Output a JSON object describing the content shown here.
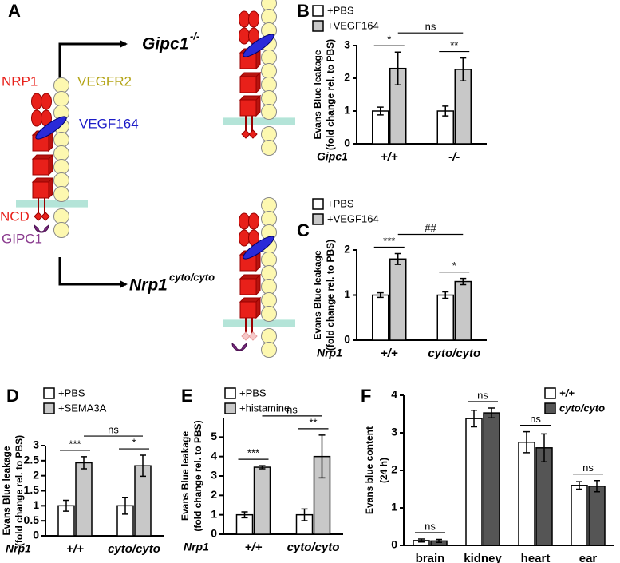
{
  "panel_a": {
    "panel_label": "A",
    "gipc1_label": "Gipc1",
    "gipc1_sup": "-/-",
    "nrp1_label": "Nrp1",
    "nrp1_sup": "cyto/cyto",
    "nrp1": "NRP1",
    "vegfr2": "VEGFR2",
    "vegf164": "VEGF164",
    "ncd": "NCD",
    "gipc1": "GIPC1"
  },
  "chart_data": [
    {
      "type": "bar",
      "panel_label": "B",
      "ylabel": [
        "Evans Blue leakage",
        "(fold change  rel. to PBS)"
      ],
      "xlabel": "Gipc1",
      "categories": [
        "+/+",
        "-/-"
      ],
      "series": [
        {
          "name": "+PBS",
          "color": "#ffffff",
          "values": [
            1,
            1
          ],
          "errors": [
            0.12,
            0.15
          ]
        },
        {
          "name": "+VEGF164",
          "color": "#c8c8c8",
          "values": [
            2.3,
            2.27
          ],
          "errors": [
            0.5,
            0.35
          ]
        }
      ],
      "ylim": [
        0,
        3
      ],
      "yticks": [
        0,
        1,
        2,
        3
      ],
      "annotations": [
        "*",
        "ns",
        "**"
      ]
    },
    {
      "type": "bar",
      "panel_label": "C",
      "ylabel": [
        "Evans Blue leakage",
        "(fold change  rel. to PBS)"
      ],
      "xlabel": "Nrp1",
      "categories": [
        "+/+",
        "cyto/cyto"
      ],
      "series": [
        {
          "name": "+PBS",
          "color": "#ffffff",
          "values": [
            1,
            1
          ],
          "errors": [
            0.05,
            0.07
          ]
        },
        {
          "name": "+VEGF164",
          "color": "#c8c8c8",
          "values": [
            1.8,
            1.3
          ],
          "errors": [
            0.12,
            0.07
          ]
        }
      ],
      "ylim": [
        0,
        2
      ],
      "yticks": [
        0,
        1,
        2
      ],
      "annotations": [
        "***",
        "##",
        "*"
      ]
    },
    {
      "type": "bar",
      "panel_label": "D",
      "ylabel": [
        "Evans Blue leakage",
        "(fold change  rel. to PBS)"
      ],
      "xlabel": "Nrp1",
      "categories": [
        "+/+",
        "cyto/cyto"
      ],
      "series": [
        {
          "name": "+PBS",
          "color": "#ffffff",
          "values": [
            1,
            1
          ],
          "errors": [
            0.18,
            0.28
          ]
        },
        {
          "name": "+SEMA3A",
          "color": "#c8c8c8",
          "values": [
            2.43,
            2.33
          ],
          "errors": [
            0.2,
            0.35
          ]
        }
      ],
      "ylim": [
        0,
        3
      ],
      "yticks": [
        0,
        0.5,
        1,
        1.5,
        2,
        2.5,
        3
      ],
      "annotations": [
        "***",
        "ns",
        "*"
      ]
    },
    {
      "type": "bar",
      "panel_label": "E",
      "ylabel": [
        "Evans Blue leakage",
        "(fold change  rel. to PBS)"
      ],
      "xlabel": "Nrp1",
      "categories": [
        "+/+",
        "cyto/cyto"
      ],
      "series": [
        {
          "name": "+PBS",
          "color": "#ffffff",
          "values": [
            1,
            1
          ],
          "errors": [
            0.15,
            0.3
          ]
        },
        {
          "name": "+histamine",
          "color": "#c8c8c8",
          "values": [
            3.45,
            4.0
          ],
          "errors": [
            0.08,
            1.1
          ]
        }
      ],
      "ylim": [
        0,
        6
      ],
      "yticks": [
        0,
        1,
        2,
        3,
        4,
        5
      ],
      "annotations": [
        "***",
        "ns",
        "**"
      ]
    },
    {
      "type": "bar",
      "panel_label": "F",
      "ylabel": [
        "Evans blue content",
        "(24 h)"
      ],
      "categories": [
        "brain",
        "kidney",
        "heart",
        "ear"
      ],
      "series": [
        {
          "name": "+/+",
          "color": "#ffffff",
          "values": [
            0.13,
            3.38,
            2.75,
            1.6
          ],
          "errors": [
            0.04,
            0.22,
            0.28,
            0.1
          ]
        },
        {
          "name": "cyto/cyto",
          "color": "#555555",
          "values": [
            0.12,
            3.53,
            2.6,
            1.58
          ],
          "errors": [
            0.04,
            0.13,
            0.37,
            0.15
          ]
        }
      ],
      "ylim": [
        0,
        4
      ],
      "yticks": [
        0,
        1,
        2,
        3,
        4
      ],
      "annotations": [
        "ns",
        "ns",
        "ns",
        "ns"
      ]
    }
  ]
}
